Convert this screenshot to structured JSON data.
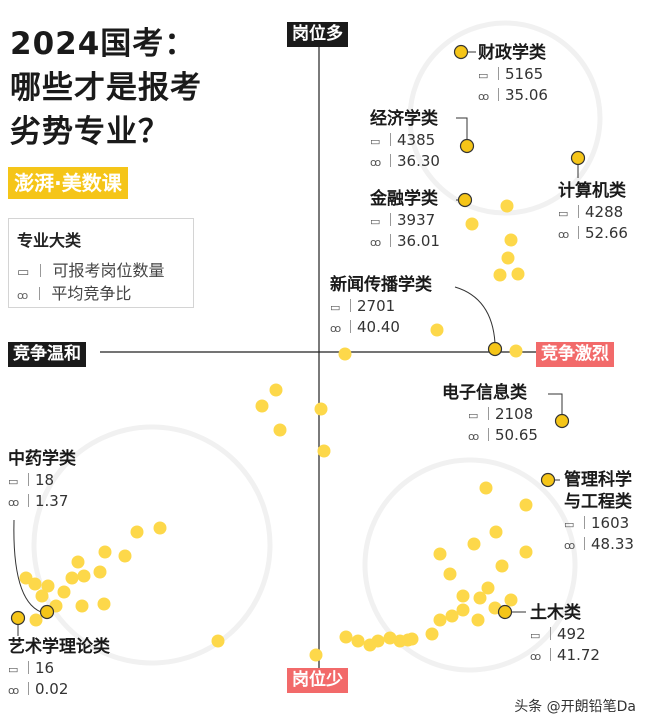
{
  "title_lines": [
    "2024国考：",
    "哪些才是报考",
    "劣势专业？"
  ],
  "brand": "澎湃·美数课",
  "legend": {
    "title": "专业大类",
    "positions_label": "可报考岗位数量",
    "ratio_label": "平均竞争比",
    "positions_icon": "monitor-icon",
    "ratio_icon": "people-icon"
  },
  "axis_labels": {
    "top": "岗位多",
    "bottom": "岗位少",
    "left": "竞争温和",
    "right": "竞争激烈"
  },
  "watermark": "头条 @开朗铅笔Da",
  "colors": {
    "dot": "#fdd84a",
    "highlight_dot": "#f5c518",
    "axis_dark_tag": "#1a1a1a",
    "axis_red_tag": "#f26a6a",
    "face_watermark": "#f1f1f1"
  },
  "chart_data": {
    "type": "scatter",
    "x_label": "竞争温和 ← → 竞争激烈",
    "y_label": "岗位少 ← → 岗位多",
    "grid": false,
    "labeled_points": [
      {
        "name": "财政学类",
        "positions": "5165",
        "ratio": "35.06"
      },
      {
        "name": "经济学类",
        "positions": "4385",
        "ratio": "36.30"
      },
      {
        "name": "计算机类",
        "positions": "4288",
        "ratio": "52.66"
      },
      {
        "name": "金融学类",
        "positions": "3937",
        "ratio": "36.01"
      },
      {
        "name": "新闻传播学类",
        "positions": "2701",
        "ratio": "40.40"
      },
      {
        "name": "电子信息类",
        "positions": "2108",
        "ratio": "50.65"
      },
      {
        "name": "管理科学与工程类",
        "name_lines": [
          "管理科学",
          "与工程类"
        ],
        "positions": "1603",
        "ratio": "48.33"
      },
      {
        "name": "土木类",
        "positions": "492",
        "ratio": "41.72"
      },
      {
        "name": "中药学类",
        "positions": "18",
        "ratio": "1.37"
      },
      {
        "name": "艺术学理论类",
        "positions": "16",
        "ratio": "0.02"
      }
    ]
  }
}
